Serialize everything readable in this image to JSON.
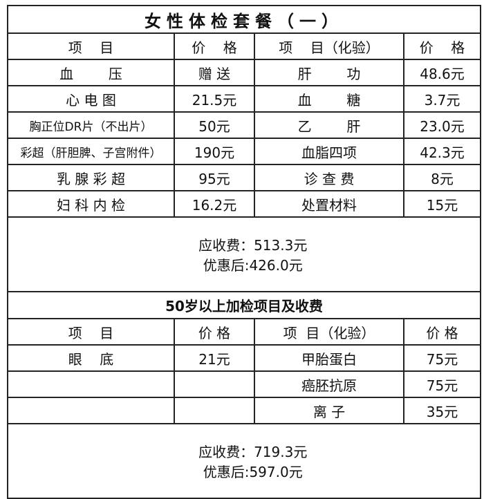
{
  "title": "女性体检套餐（一）",
  "headers": [
    "项    目",
    "价    格",
    "项    目（化验）",
    "价    格"
  ],
  "rows": [
    [
      "血        压",
      "赠 送",
      "肝        功",
      "48.6元"
    ],
    [
      "心 电 图",
      "21.5元",
      "血        糖",
      "3.7元"
    ],
    [
      "胸正位DR片（不出片）",
      "50元",
      "乙        肝",
      "23.0元"
    ],
    [
      "彩超（肝胆脾、子宫附件）",
      "190元",
      "血脂四项",
      "42.3元"
    ],
    [
      "乳 腺 彩 超",
      "95元",
      "诊 查 费",
      "8元"
    ],
    [
      "妇 科 内 检",
      "16.2元",
      "处置材料",
      "15元"
    ]
  ],
  "summary1": {
    "due": "应收费：513.3元",
    "discount": "优惠后:426.0元"
  },
  "subtitle": "50岁以上加检项目及收费",
  "headers2": [
    "项    目",
    "价 格",
    "项  目（化验）",
    "价 格"
  ],
  "rows2": [
    [
      "眼    底",
      "21元",
      "甲胎蛋白",
      "75元"
    ],
    [
      "",
      "",
      "癌胚抗原",
      "75元"
    ],
    [
      "",
      "",
      "离 子",
      "35元"
    ]
  ],
  "summary2": {
    "due": "应收费：719.3元",
    "discount": "优惠后:597.0元"
  }
}
